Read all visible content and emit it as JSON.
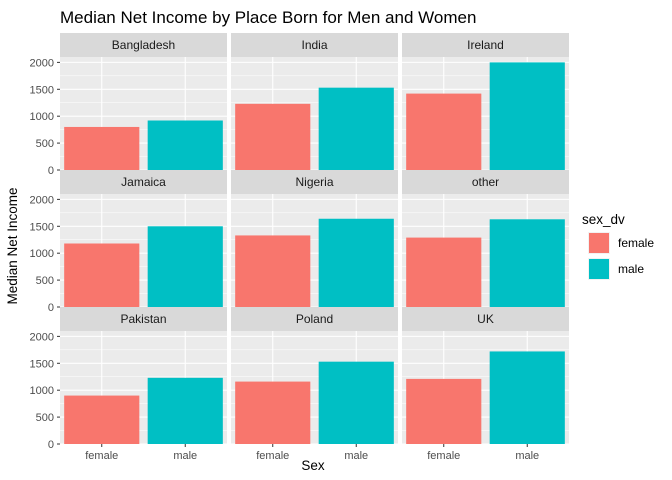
{
  "chart_data": {
    "type": "bar",
    "title": "Median Net Income by Place Born for Men and Women",
    "xlabel": "Sex",
    "ylabel": "Median Net Income",
    "categories": [
      "female",
      "male"
    ],
    "ylim": [
      0,
      2100
    ],
    "yticks": [
      0,
      500,
      1000,
      1500,
      2000
    ],
    "grid": true,
    "legend": {
      "title": "sex_dv",
      "position": "right",
      "entries": [
        {
          "label": "female",
          "color": "#F8766D"
        },
        {
          "label": "male",
          "color": "#00BFC4"
        }
      ]
    },
    "panels": [
      {
        "name": "Bangladesh",
        "values": [
          800,
          920
        ]
      },
      {
        "name": "India",
        "values": [
          1230,
          1530
        ]
      },
      {
        "name": "Ireland",
        "values": [
          1420,
          2000
        ]
      },
      {
        "name": "Jamaica",
        "values": [
          1180,
          1500
        ]
      },
      {
        "name": "Nigeria",
        "values": [
          1330,
          1640
        ]
      },
      {
        "name": "other",
        "values": [
          1290,
          1630
        ]
      },
      {
        "name": "Pakistan",
        "values": [
          900,
          1230
        ]
      },
      {
        "name": "Poland",
        "values": [
          1160,
          1530
        ]
      },
      {
        "name": "UK",
        "values": [
          1210,
          1720
        ]
      }
    ]
  }
}
